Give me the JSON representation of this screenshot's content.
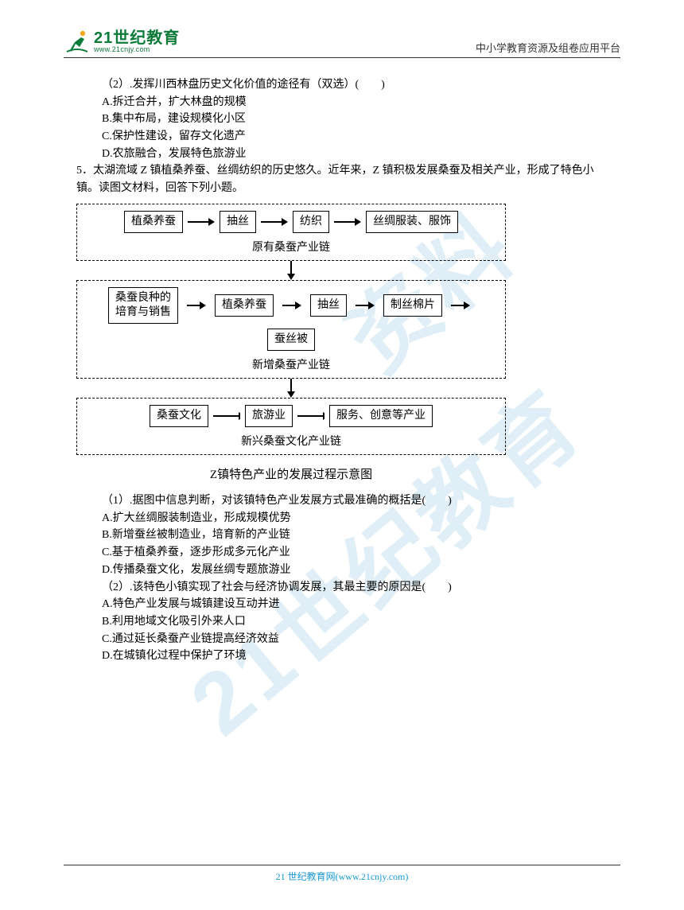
{
  "header": {
    "logo_cn": "21世纪教育",
    "logo_url": "www.21cnjy.com",
    "right_text": "中小学教育资源及组卷应用平台"
  },
  "watermark": {
    "line1": "资料",
    "line2": "21世纪教育"
  },
  "q2": {
    "stem": "（2）.发挥川西林盘历史文化价值的途径有（双选）(　　)",
    "A": "A.拆迁合并，扩大林盘的规模",
    "B": "B.集中布局，建设规模化小区",
    "C": "C.保护性建设，留存文化遗产",
    "D": "D.农旅融合，发展特色旅游业"
  },
  "q5": {
    "intro": " 5．太湖流域 Z 镇植桑养蚕、丝绸纺织的历史悠久。近年来，Z 镇积极发展桑蚕及相关产业，形成了特色小镇。读图文材料，回答下列小题。",
    "caption": "Z镇特色产业的发展过程示意图",
    "sub1": {
      "stem": "（1）.据图中信息判断，对该镇特色产业发展方式最准确的概括是(　　)",
      "A": "A.扩大丝绸服装制造业，形成规模优势",
      "B": "B.新增蚕丝被制造业，培育新的产业链",
      "C": "C.基于植桑养蚕，逐步形成多元化产业",
      "D": "D.传播桑蚕文化，发展丝绸专题旅游业"
    },
    "sub2": {
      "stem": "（2）.该特色小镇实现了社会与经济协调发展，其最主要的原因是(　　)",
      "A": "A.特色产业发展与城镇建设互动并进",
      "B": "B.利用地域文化吸引外来人口",
      "C": "C.通过延长桑蚕产业链提高经济效益",
      "D": "D.在城镇化过程中保护了环境"
    }
  },
  "diagram": {
    "chain1": {
      "label": "原有桑蚕产业链",
      "nodes": [
        "植桑养蚕",
        "抽丝",
        "纺织",
        "丝绸服装、服饰"
      ]
    },
    "chain2": {
      "label": "新增桑蚕产业链",
      "nodes": [
        "桑蚕良种的\n培育与销售",
        "植桑养蚕",
        "抽丝",
        "制丝棉片",
        "蚕丝被"
      ]
    },
    "chain3": {
      "label": "新兴桑蚕文化产业链",
      "nodes": [
        "桑蚕文化",
        "旅游业",
        "服务、创意等产业"
      ]
    }
  },
  "footer": {
    "text_prefix": "21 世纪教育网",
    "url": "(www.21cnjy.com)"
  },
  "colors": {
    "brand_green": "#0d7a3a",
    "watermark_blue": "#5aa8d8",
    "footer_blue": "#1899d6"
  }
}
